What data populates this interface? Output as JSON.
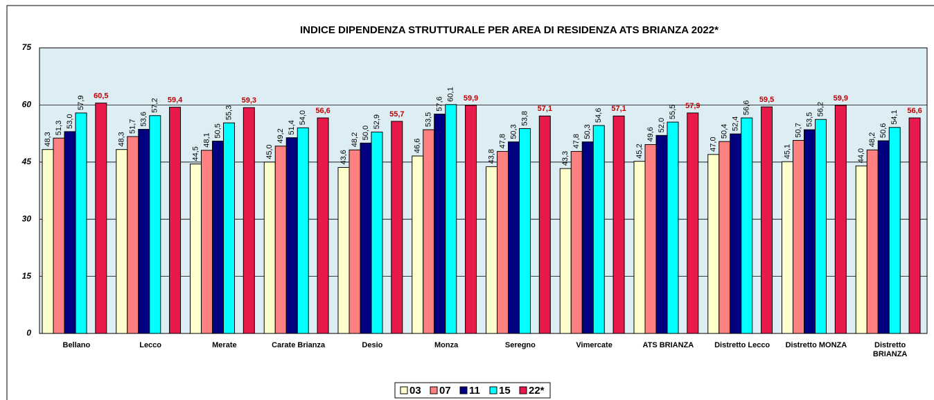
{
  "chart_data": {
    "type": "bar",
    "title": "INDICE DIPENDENZA STRUTTURALE PER AREA DI RESIDENZA ATS BRIANZA 2022*",
    "categories": [
      "Bellano",
      "Lecco",
      "Merate",
      "Carate Brianza",
      "Desio",
      "Monza",
      "Seregno",
      "Vimercate",
      "ATS BRIANZA",
      "Distretto Lecco",
      "Distretto MONZA",
      "Distretto BRIANZA"
    ],
    "series": [
      {
        "name": "03",
        "color": "#ffffcc",
        "values": [
          48.3,
          48.3,
          44.5,
          45.0,
          43.6,
          46.6,
          43.8,
          43.3,
          45.2,
          47.0,
          45.1,
          44.0
        ],
        "value_labels": [
          "48,3",
          "48,3",
          "44,5",
          "45,0",
          "43,6",
          "46,6",
          "43,8",
          "43,3",
          "45,2",
          "47,0",
          "45,1",
          "44,0"
        ]
      },
      {
        "name": "07",
        "color": "#ff8080",
        "values": [
          51.3,
          51.7,
          48.1,
          49.2,
          48.2,
          53.5,
          47.8,
          47.8,
          49.6,
          50.4,
          50.7,
          48.2
        ],
        "value_labels": [
          "51,3",
          "51,7",
          "48,1",
          "49,2",
          "48,2",
          "53,5",
          "47,8",
          "47,8",
          "49,6",
          "50,4",
          "50,7",
          "48,2"
        ]
      },
      {
        "name": "11",
        "color": "#000080",
        "values": [
          53.0,
          53.6,
          50.5,
          51.4,
          50.0,
          57.6,
          50.3,
          50.3,
          52.0,
          52.4,
          53.5,
          50.6
        ],
        "value_labels": [
          "53,0",
          "53,6",
          "50,5",
          "51,4",
          "50,0",
          "57,6",
          "50,3",
          "50,3",
          "52,0",
          "52,4",
          "53,5",
          "50,6"
        ]
      },
      {
        "name": "15",
        "color": "#00ffff",
        "values": [
          57.9,
          57.2,
          55.3,
          54.0,
          52.9,
          60.1,
          53.8,
          54.6,
          55.5,
          56.6,
          56.2,
          54.1
        ],
        "value_labels": [
          "57,9",
          "57,2",
          "55,3",
          "54,0",
          "52,9",
          "60,1",
          "53,8",
          "54,6",
          "55,5",
          "56,6",
          "56,2",
          "54,1"
        ]
      },
      {
        "name": "22*",
        "color": "#e8194b",
        "values": [
          60.5,
          59.4,
          59.3,
          56.6,
          55.7,
          59.9,
          57.1,
          57.1,
          57.9,
          59.5,
          59.9,
          56.6
        ],
        "value_labels": [
          "60,5",
          "59,4",
          "59,3",
          "56,6",
          "55,7",
          "59,9",
          "57,1",
          "57,1",
          "57,9",
          "59,5",
          "59,9",
          "56,6"
        ]
      }
    ],
    "ylim": [
      0,
      75
    ],
    "yticks": [
      0,
      15,
      30,
      45,
      60,
      75
    ],
    "grid": true,
    "legend": "bottom"
  }
}
